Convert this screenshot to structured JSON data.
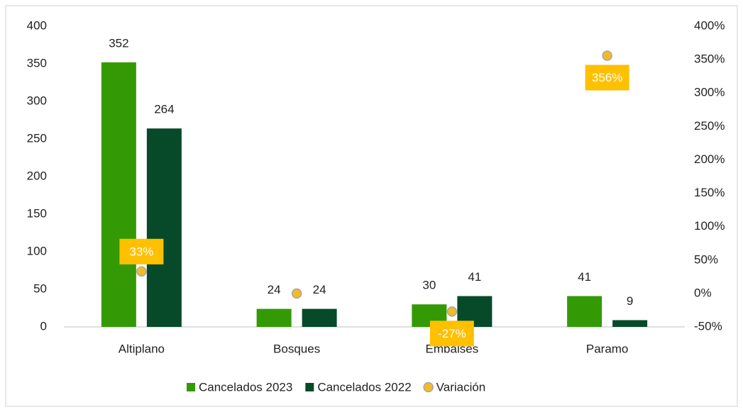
{
  "chart_data": {
    "type": "bar",
    "categories": [
      "Altiplano",
      "Bosques",
      "Embalses",
      "Paramo"
    ],
    "series": [
      {
        "name": "Cancelados 2023",
        "color": "#339a06",
        "values": [
          352,
          24,
          30,
          41
        ]
      },
      {
        "name": "Cancelados 2022",
        "color": "#064a2a",
        "values": [
          264,
          24,
          41,
          9
        ]
      },
      {
        "name": "Variación",
        "type": "scatter",
        "axis": "y2",
        "color": "#f2b92b",
        "label_color": "#ffc000",
        "values": [
          33,
          0,
          -27,
          356
        ],
        "value_labels": [
          "33%",
          null,
          "-27%",
          "356%"
        ]
      }
    ],
    "ylim": [
      0,
      400
    ],
    "yticks": [
      0,
      50,
      100,
      150,
      200,
      250,
      300,
      350,
      400
    ],
    "y2lim": [
      -50,
      400
    ],
    "y2ticks": [
      {
        "value": -50,
        "label": "-50%"
      },
      {
        "value": 0,
        "label": "0%"
      },
      {
        "value": 50,
        "label": "50%"
      },
      {
        "value": 100,
        "label": "100%"
      },
      {
        "value": 150,
        "label": "150%"
      },
      {
        "value": 200,
        "label": "200%"
      },
      {
        "value": 250,
        "label": "250%"
      },
      {
        "value": 300,
        "label": "300%"
      },
      {
        "value": 350,
        "label": "350%"
      },
      {
        "value": 400,
        "label": "400%"
      }
    ],
    "legend": "bottom"
  }
}
